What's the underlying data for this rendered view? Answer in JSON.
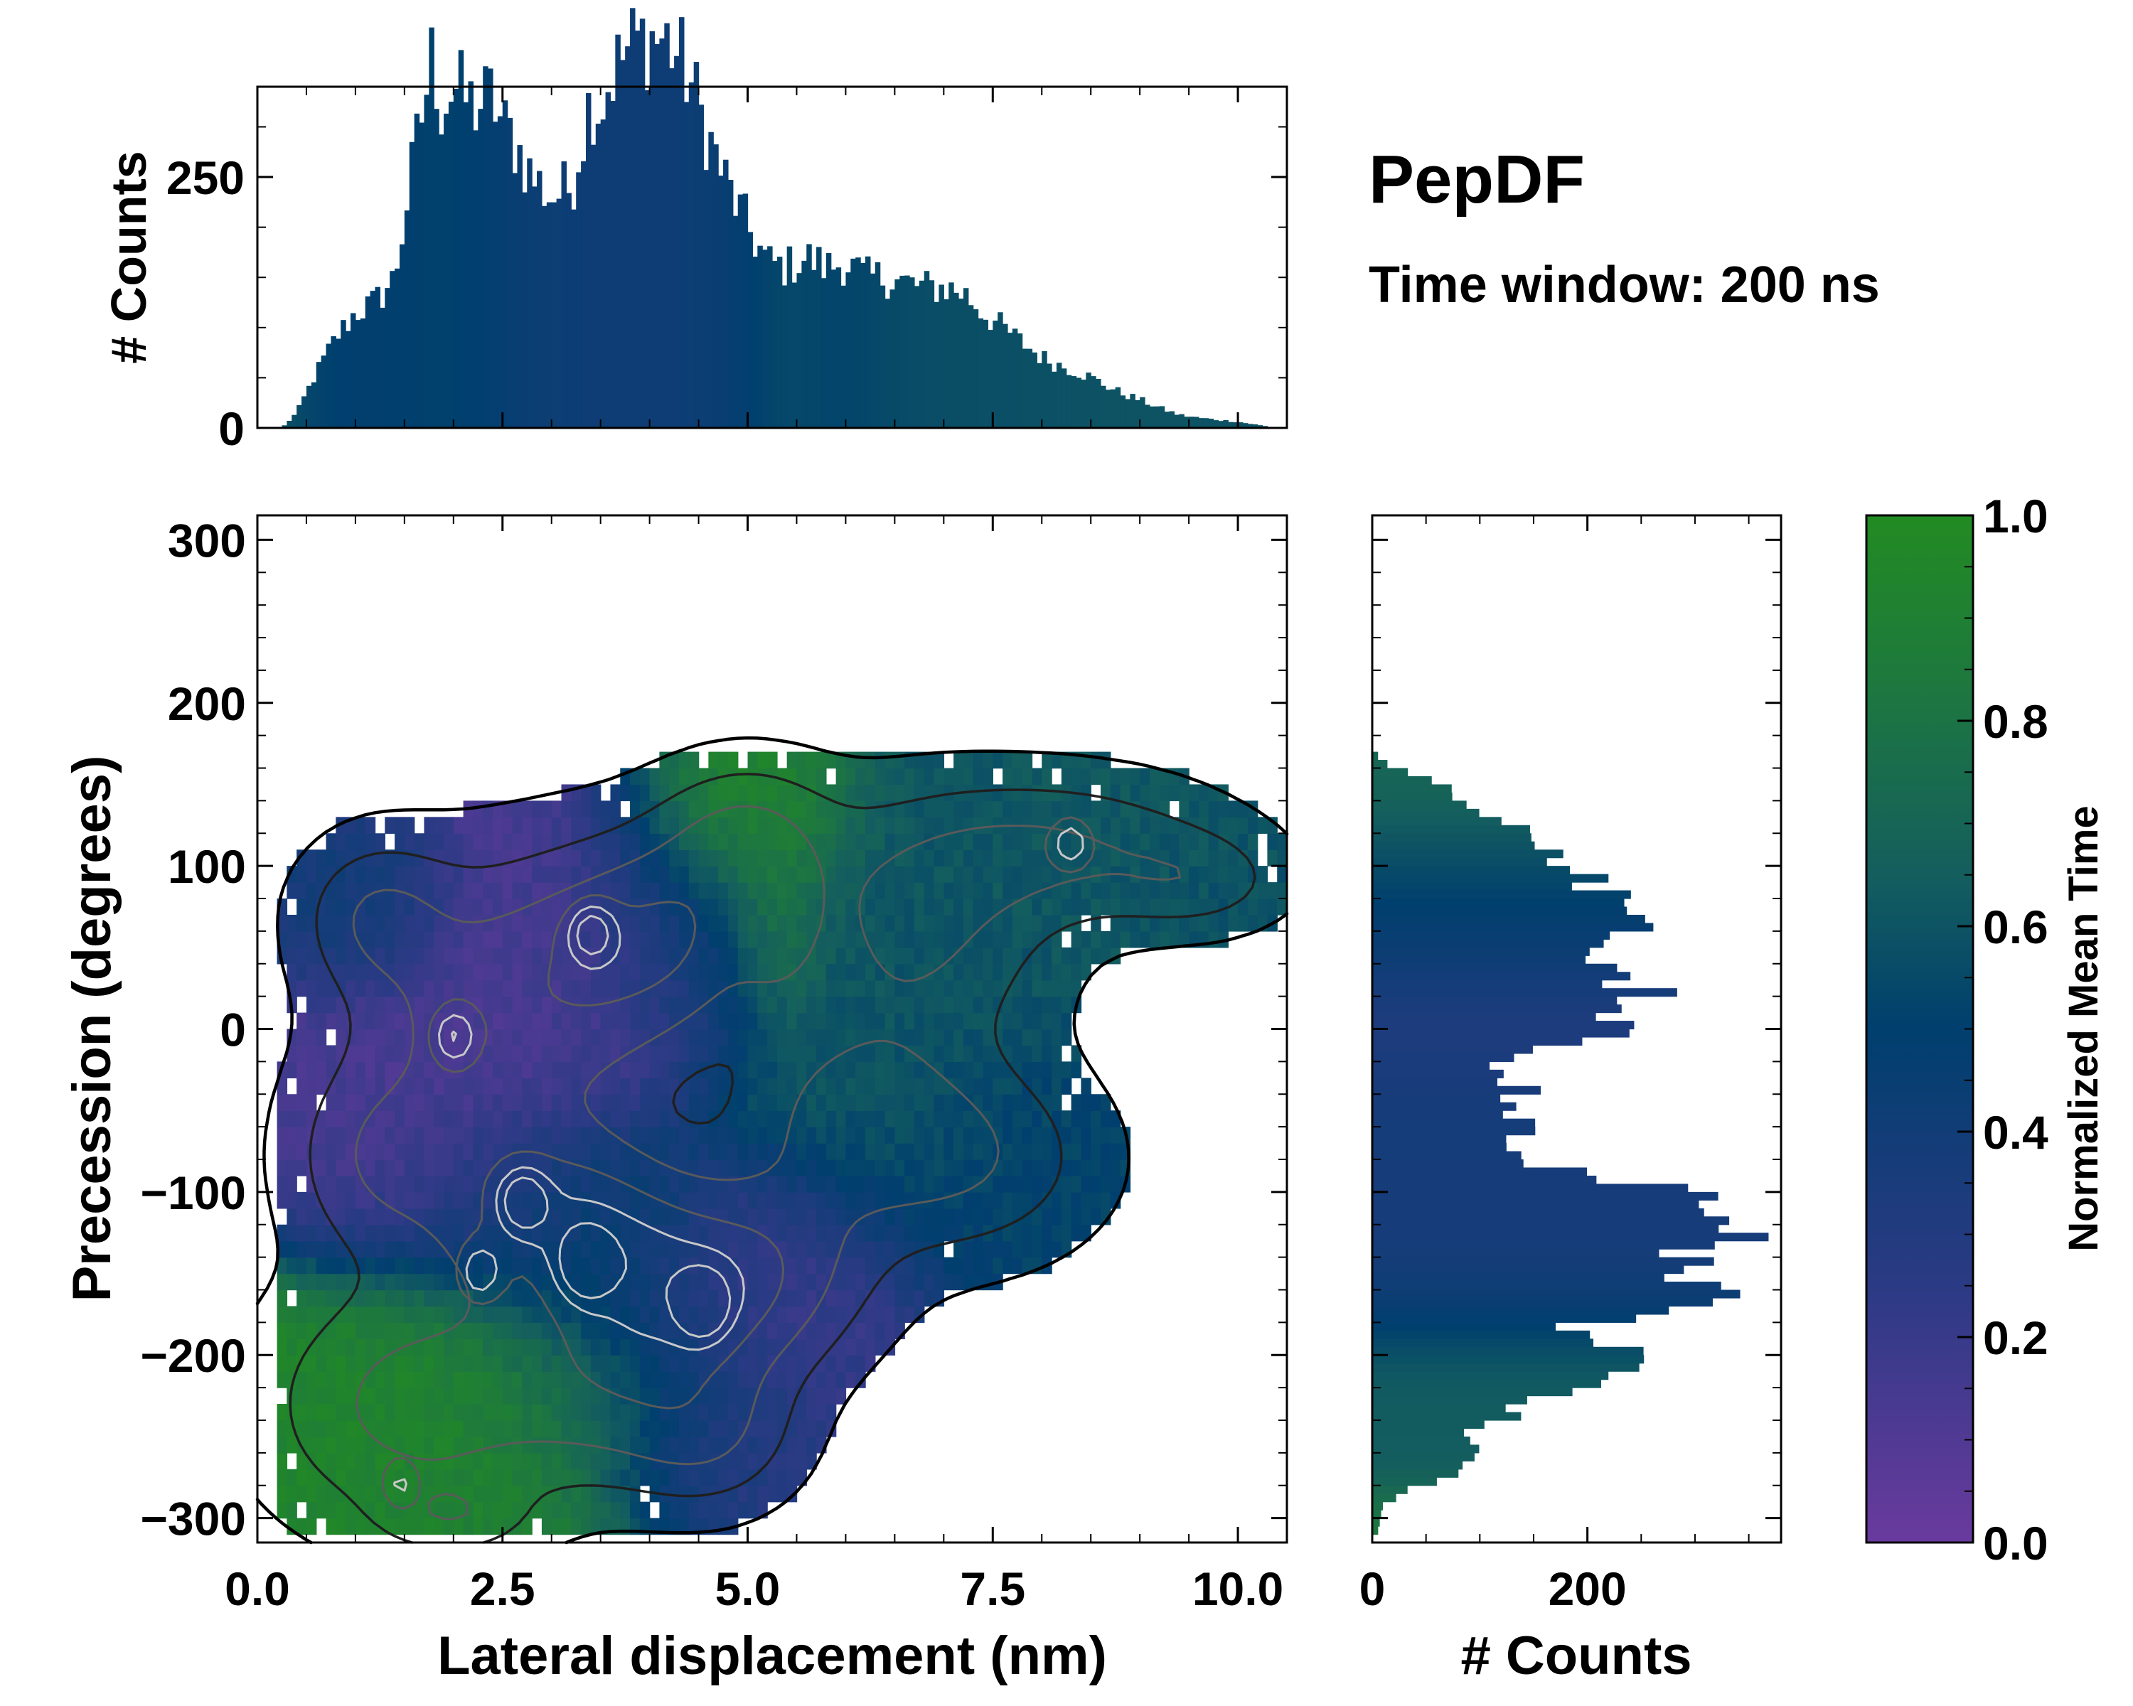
{
  "chart_data": [
    {
      "id": "top-histogram",
      "type": "bar",
      "title": "PepDF",
      "subtitle": "Time window: 200 ns",
      "xlabel": "",
      "ylabel": "# Counts",
      "xlim": [
        0.0,
        10.5
      ],
      "ylim": [
        0,
        340
      ],
      "yticks": [
        0,
        250
      ],
      "yticklabels": [
        "0",
        "250"
      ],
      "bin_width": 0.05,
      "bin_start": 0.25,
      "control_points": {
        "x": [
          0.25,
          0.4,
          0.6,
          0.8,
          1.0,
          1.2,
          1.4,
          1.6,
          1.8,
          1.85,
          2.0,
          2.2,
          2.4,
          2.5,
          2.6,
          2.8,
          3.0,
          3.2,
          3.4,
          3.5,
          3.6,
          3.8,
          4.0,
          4.2,
          4.4,
          4.6,
          4.8,
          5.0,
          5.2,
          5.4,
          5.6,
          5.8,
          6.0,
          6.2,
          6.4,
          6.6,
          6.8,
          7.0,
          7.2,
          7.4,
          7.6,
          7.8,
          8.0,
          8.2,
          8.4,
          8.6,
          8.8,
          9.0,
          9.2,
          9.4,
          9.6,
          9.8,
          10.0,
          10.2,
          10.4
        ],
        "counts": [
          0,
          15,
          55,
          90,
          115,
          125,
          150,
          270,
          380,
          320,
          340,
          320,
          330,
          300,
          290,
          250,
          230,
          240,
          330,
          320,
          350,
          380,
          390,
          385,
          350,
          290,
          240,
          200,
          165,
          160,
          170,
          160,
          165,
          150,
          150,
          145,
          140,
          140,
          135,
          115,
          100,
          85,
          70,
          62,
          55,
          45,
          35,
          28,
          20,
          13,
          10,
          8,
          6,
          3,
          0
        ]
      },
      "color_scale": "Normalized Mean Time"
    },
    {
      "id": "main-2d-histogram",
      "type": "heatmap",
      "xlabel": "Lateral displacement (nm)",
      "ylabel": "Precession (degrees)",
      "xlim": [
        0.0,
        10.5
      ],
      "ylim": [
        -315,
        315
      ],
      "xticks": [
        0.0,
        2.5,
        5.0,
        7.5,
        10.0
      ],
      "xticklabels": [
        "0.0",
        "2.5",
        "5.0",
        "7.5",
        "10.0"
      ],
      "yticks": [
        -300,
        -200,
        -100,
        0,
        100,
        200,
        300
      ],
      "yticklabels": [
        "−300",
        "−200",
        "−100",
        "0",
        "100",
        "200",
        "300"
      ],
      "bin_size_x": 0.1,
      "bin_size_y": 10,
      "density_lobes": [
        {
          "x": 2.3,
          "y": 10,
          "sx": 0.9,
          "sy": 60,
          "w": 1.0,
          "t": 0.12
        },
        {
          "x": 1.2,
          "y": 70,
          "sx": 0.5,
          "sy": 30,
          "w": 0.7,
          "t": 0.45
        },
        {
          "x": 3.6,
          "y": 40,
          "sx": 0.7,
          "sy": 50,
          "w": 0.9,
          "t": 0.18
        },
        {
          "x": 4.4,
          "y": 60,
          "sx": 0.6,
          "sy": 40,
          "w": 0.8,
          "t": 0.5
        },
        {
          "x": 5.0,
          "y": 120,
          "sx": 0.6,
          "sy": 30,
          "w": 0.8,
          "t": 0.97
        },
        {
          "x": 5.3,
          "y": 60,
          "sx": 0.3,
          "sy": 30,
          "w": 0.5,
          "t": 0.95
        },
        {
          "x": 6.7,
          "y": 60,
          "sx": 0.9,
          "sy": 50,
          "w": 0.9,
          "t": 0.6
        },
        {
          "x": 8.2,
          "y": 110,
          "sx": 1.1,
          "sy": 30,
          "w": 0.8,
          "t": 0.62
        },
        {
          "x": 9.6,
          "y": 90,
          "sx": 0.6,
          "sy": 20,
          "w": 0.5,
          "t": 0.58
        },
        {
          "x": 7.2,
          "y": -80,
          "sx": 0.9,
          "sy": 40,
          "w": 0.8,
          "t": 0.52
        },
        {
          "x": 6.0,
          "y": -50,
          "sx": 0.8,
          "sy": 40,
          "w": 0.8,
          "t": 0.62
        },
        {
          "x": 1.2,
          "y": -80,
          "sx": 0.6,
          "sy": 40,
          "w": 0.7,
          "t": 0.15
        },
        {
          "x": 2.8,
          "y": -110,
          "sx": 0.8,
          "sy": 40,
          "w": 1.0,
          "t": 0.3
        },
        {
          "x": 4.5,
          "y": -170,
          "sx": 0.8,
          "sy": 40,
          "w": 1.0,
          "t": 0.22
        },
        {
          "x": 3.6,
          "y": -130,
          "sx": 0.7,
          "sy": 40,
          "w": 0.9,
          "t": 0.6
        },
        {
          "x": 5.2,
          "y": -140,
          "sx": 0.8,
          "sy": 40,
          "w": 0.8,
          "t": 0.2
        },
        {
          "x": 1.6,
          "y": -230,
          "sx": 1.0,
          "sy": 50,
          "w": 1.0,
          "t": 0.93
        },
        {
          "x": 3.5,
          "y": -220,
          "sx": 0.8,
          "sy": 40,
          "w": 0.8,
          "t": 0.75
        },
        {
          "x": 4.6,
          "y": -250,
          "sx": 0.6,
          "sy": 30,
          "w": 0.7,
          "t": 0.25
        },
        {
          "x": 2.0,
          "y": -300,
          "sx": 0.5,
          "sy": 15,
          "w": 0.5,
          "t": 0.9
        }
      ],
      "density_threshold": 0.14,
      "hot_spots": [
        {
          "x": 2.7,
          "y": -105
        },
        {
          "x": 2.25,
          "y": -150
        },
        {
          "x": 3.35,
          "y": -145
        },
        {
          "x": 4.55,
          "y": -170
        },
        {
          "x": 1.45,
          "y": -280
        },
        {
          "x": 2.0,
          "y": -5
        },
        {
          "x": 3.4,
          "y": 60
        },
        {
          "x": 8.3,
          "y": 115
        }
      ],
      "color_scale": "Normalized Mean Time"
    },
    {
      "id": "right-histogram",
      "type": "bar",
      "orientation": "horizontal",
      "xlabel": "# Counts",
      "ylabel": "",
      "xlim": [
        0,
        380
      ],
      "ylim": [
        -315,
        315
      ],
      "xticks": [
        0,
        200
      ],
      "xticklabels": [
        "0",
        "200"
      ],
      "bin_width": 5,
      "control_points": {
        "y": [
          -310,
          -290,
          -270,
          -260,
          -250,
          -230,
          -210,
          -200,
          -190,
          -180,
          -170,
          -160,
          -150,
          -140,
          -130,
          -110,
          -100,
          -80,
          -60,
          -50,
          -40,
          -20,
          0,
          20,
          40,
          60,
          80,
          100,
          110,
          130,
          150,
          160,
          170
        ],
        "counts": [
          5,
          12,
          80,
          110,
          80,
          150,
          230,
          260,
          180,
          200,
          300,
          310,
          280,
          300,
          330,
          320,
          300,
          120,
          150,
          110,
          140,
          120,
          230,
          260,
          200,
          250,
          220,
          190,
          180,
          100,
          60,
          20,
          0
        ]
      },
      "color_scale": "Normalized Mean Time"
    }
  ],
  "colorbar": {
    "label": "Normalized Mean Time",
    "ticks": [
      0.0,
      0.2,
      0.4,
      0.6,
      0.8,
      1.0
    ],
    "ticklabels": [
      "0.0",
      "0.2",
      "0.4",
      "0.6",
      "0.8",
      "1.0"
    ],
    "colors": [
      "#6a3a9e",
      "#2b3a84",
      "#003f6e",
      "#145e5e",
      "#1e7a3c",
      "#228b22"
    ],
    "color_positions": [
      0.0,
      0.25,
      0.5,
      0.65,
      0.85,
      1.0
    ]
  },
  "contours": {
    "outline_color": "#000000",
    "low_level_color": "#1f1f1f",
    "mid_level_color": "#5a5a5a",
    "high_level_color": "#c8c8c8"
  }
}
